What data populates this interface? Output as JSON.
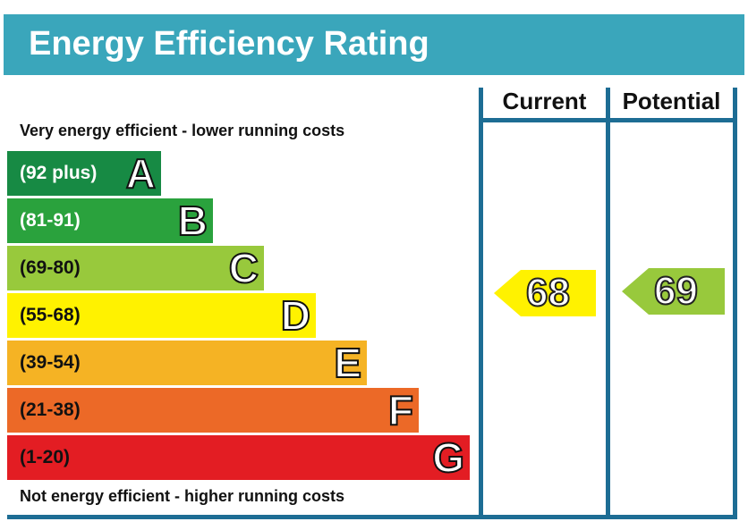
{
  "header": {
    "title": "Energy Efficiency Rating"
  },
  "columns": {
    "current": "Current",
    "potential": "Potential"
  },
  "captions": {
    "top": "Very energy efficient - lower running costs",
    "bottom": "Not energy efficient - higher running costs"
  },
  "colors": {
    "header_bg": "#3aa6bb",
    "frame": "#1d6d94"
  },
  "chart_data": {
    "type": "bar",
    "categories": [
      "A",
      "B",
      "C",
      "D",
      "E",
      "F",
      "G"
    ],
    "bands": [
      {
        "letter": "A",
        "range": "(92 plus)",
        "color": "#178a44",
        "text_color": "#ffffff"
      },
      {
        "letter": "B",
        "range": "(81-91)",
        "color": "#2aa23d",
        "text_color": "#ffffff"
      },
      {
        "letter": "C",
        "range": "(69-80)",
        "color": "#98c93c",
        "text_color": "#111111"
      },
      {
        "letter": "D",
        "range": "(55-68)",
        "color": "#fff200",
        "text_color": "#111111"
      },
      {
        "letter": "E",
        "range": "(39-54)",
        "color": "#f5b324",
        "text_color": "#111111"
      },
      {
        "letter": "F",
        "range": "(21-38)",
        "color": "#ec6927",
        "text_color": "#111111"
      },
      {
        "letter": "G",
        "range": "(1-20)",
        "color": "#e31d23",
        "text_color": "#111111"
      }
    ],
    "current": {
      "label": "Current",
      "value": "68",
      "band": "D",
      "color": "#fff200"
    },
    "potential": {
      "label": "Potential",
      "value": "69",
      "band": "C",
      "color": "#98c93c"
    }
  }
}
